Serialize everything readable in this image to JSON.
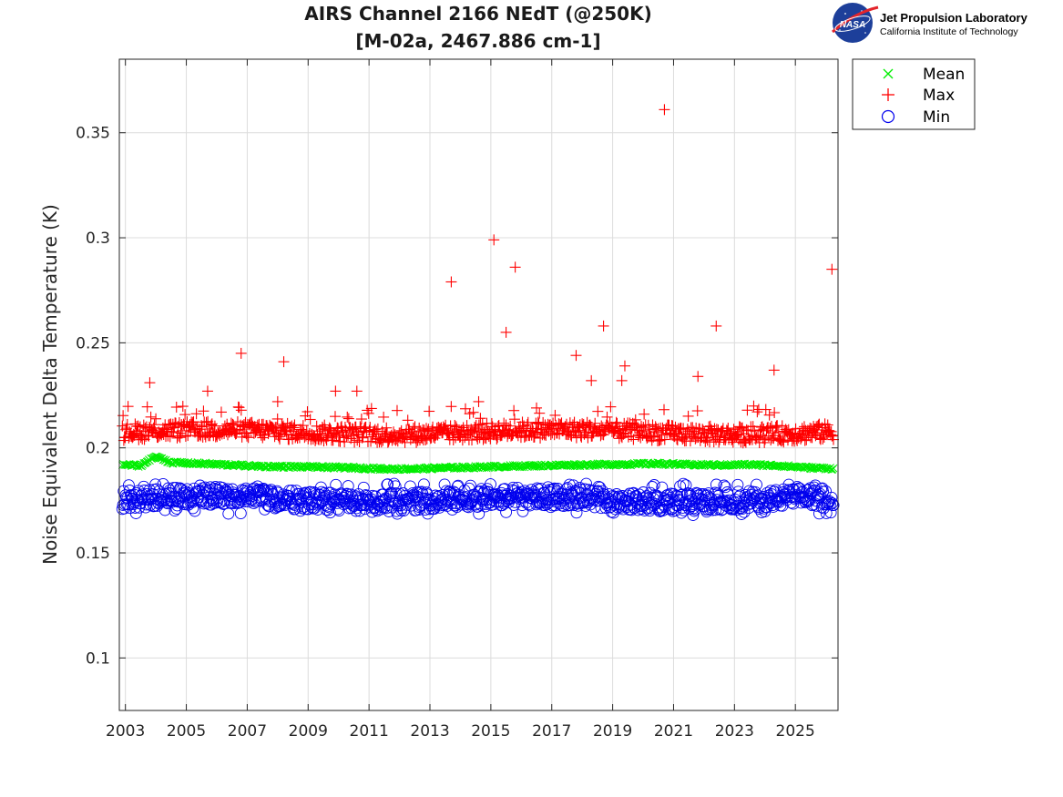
{
  "logo": {
    "icon": "nasa-meatball-icon",
    "badge_text": "NASA",
    "org_name": "Jet Propulsion Laboratory",
    "org_sub": "California Institute of Technology"
  },
  "chart_data": {
    "type": "scatter",
    "title": [
      "AIRS Channel 2166 NEdT (@250K)",
      "[M-02a, 2467.886 cm-1]"
    ],
    "xlabel": "",
    "ylabel": "Noise Equivalent Delta Temperature (K)",
    "xlim": [
      2002.8,
      2026.4
    ],
    "ylim": [
      0.075,
      0.385
    ],
    "xticks": [
      2003,
      2005,
      2007,
      2009,
      2011,
      2013,
      2015,
      2017,
      2019,
      2021,
      2023,
      2025
    ],
    "xtick_labels": [
      "2003",
      "2005",
      "2007",
      "2009",
      "2011",
      "2013",
      "2015",
      "2017",
      "2019",
      "2021",
      "2023",
      "2025"
    ],
    "yticks": [
      0.1,
      0.15,
      0.2,
      0.25,
      0.3,
      0.35
    ],
    "ytick_labels": [
      "0.1",
      "0.15",
      "0.2",
      "0.25",
      "0.3",
      "0.35"
    ],
    "grid": true,
    "legend_position": "outside-top-right",
    "series": [
      {
        "name": "Mean",
        "marker": "x",
        "color": "#00ee00",
        "x": [
          2002.9,
          2003.5,
          2004.0,
          2004.5,
          2005.5,
          2006.5,
          2007.5,
          2008.5,
          2009.5,
          2010.5,
          2011.5,
          2012.5,
          2013.5,
          2014.5,
          2015.5,
          2016.5,
          2017.5,
          2018.5,
          2019.5,
          2020.5,
          2021.5,
          2022.5,
          2023.5,
          2024.5,
          2025.5,
          2026.2
        ],
        "y": [
          0.192,
          0.1915,
          0.196,
          0.193,
          0.1925,
          0.1918,
          0.1912,
          0.191,
          0.1908,
          0.1905,
          0.19,
          0.19,
          0.1905,
          0.1908,
          0.1912,
          0.1915,
          0.1918,
          0.192,
          0.1922,
          0.1925,
          0.192,
          0.1918,
          0.192,
          0.1915,
          0.1905,
          0.1902
        ]
      },
      {
        "name": "Max",
        "marker": "+",
        "color": "#ff0000",
        "band": [
          0.203,
          0.212
        ],
        "outliers": [
          {
            "x": 2003.8,
            "y": 0.231
          },
          {
            "x": 2005.7,
            "y": 0.227
          },
          {
            "x": 2006.8,
            "y": 0.245
          },
          {
            "x": 2008.2,
            "y": 0.241
          },
          {
            "x": 2009.9,
            "y": 0.227
          },
          {
            "x": 2010.6,
            "y": 0.227
          },
          {
            "x": 2013.7,
            "y": 0.279
          },
          {
            "x": 2015.1,
            "y": 0.299
          },
          {
            "x": 2015.5,
            "y": 0.255
          },
          {
            "x": 2015.8,
            "y": 0.286
          },
          {
            "x": 2017.8,
            "y": 0.244
          },
          {
            "x": 2018.3,
            "y": 0.232
          },
          {
            "x": 2018.7,
            "y": 0.258
          },
          {
            "x": 2019.4,
            "y": 0.239
          },
          {
            "x": 2020.7,
            "y": 0.361
          },
          {
            "x": 2021.8,
            "y": 0.234
          },
          {
            "x": 2022.4,
            "y": 0.258
          },
          {
            "x": 2024.3,
            "y": 0.237
          },
          {
            "x": 2026.2,
            "y": 0.285
          },
          {
            "x": 2008.0,
            "y": 0.222
          },
          {
            "x": 2014.6,
            "y": 0.222
          },
          {
            "x": 2016.5,
            "y": 0.219
          },
          {
            "x": 2019.3,
            "y": 0.232
          }
        ]
      },
      {
        "name": "Min",
        "marker": "o",
        "color": "#0000ee",
        "band": [
          0.168,
          0.183
        ]
      }
    ]
  },
  "colors": {
    "mean": "#00ee00",
    "max": "#ff0000",
    "min": "#0000ee",
    "grid": "#dcdcdc",
    "axis": "#262626"
  }
}
